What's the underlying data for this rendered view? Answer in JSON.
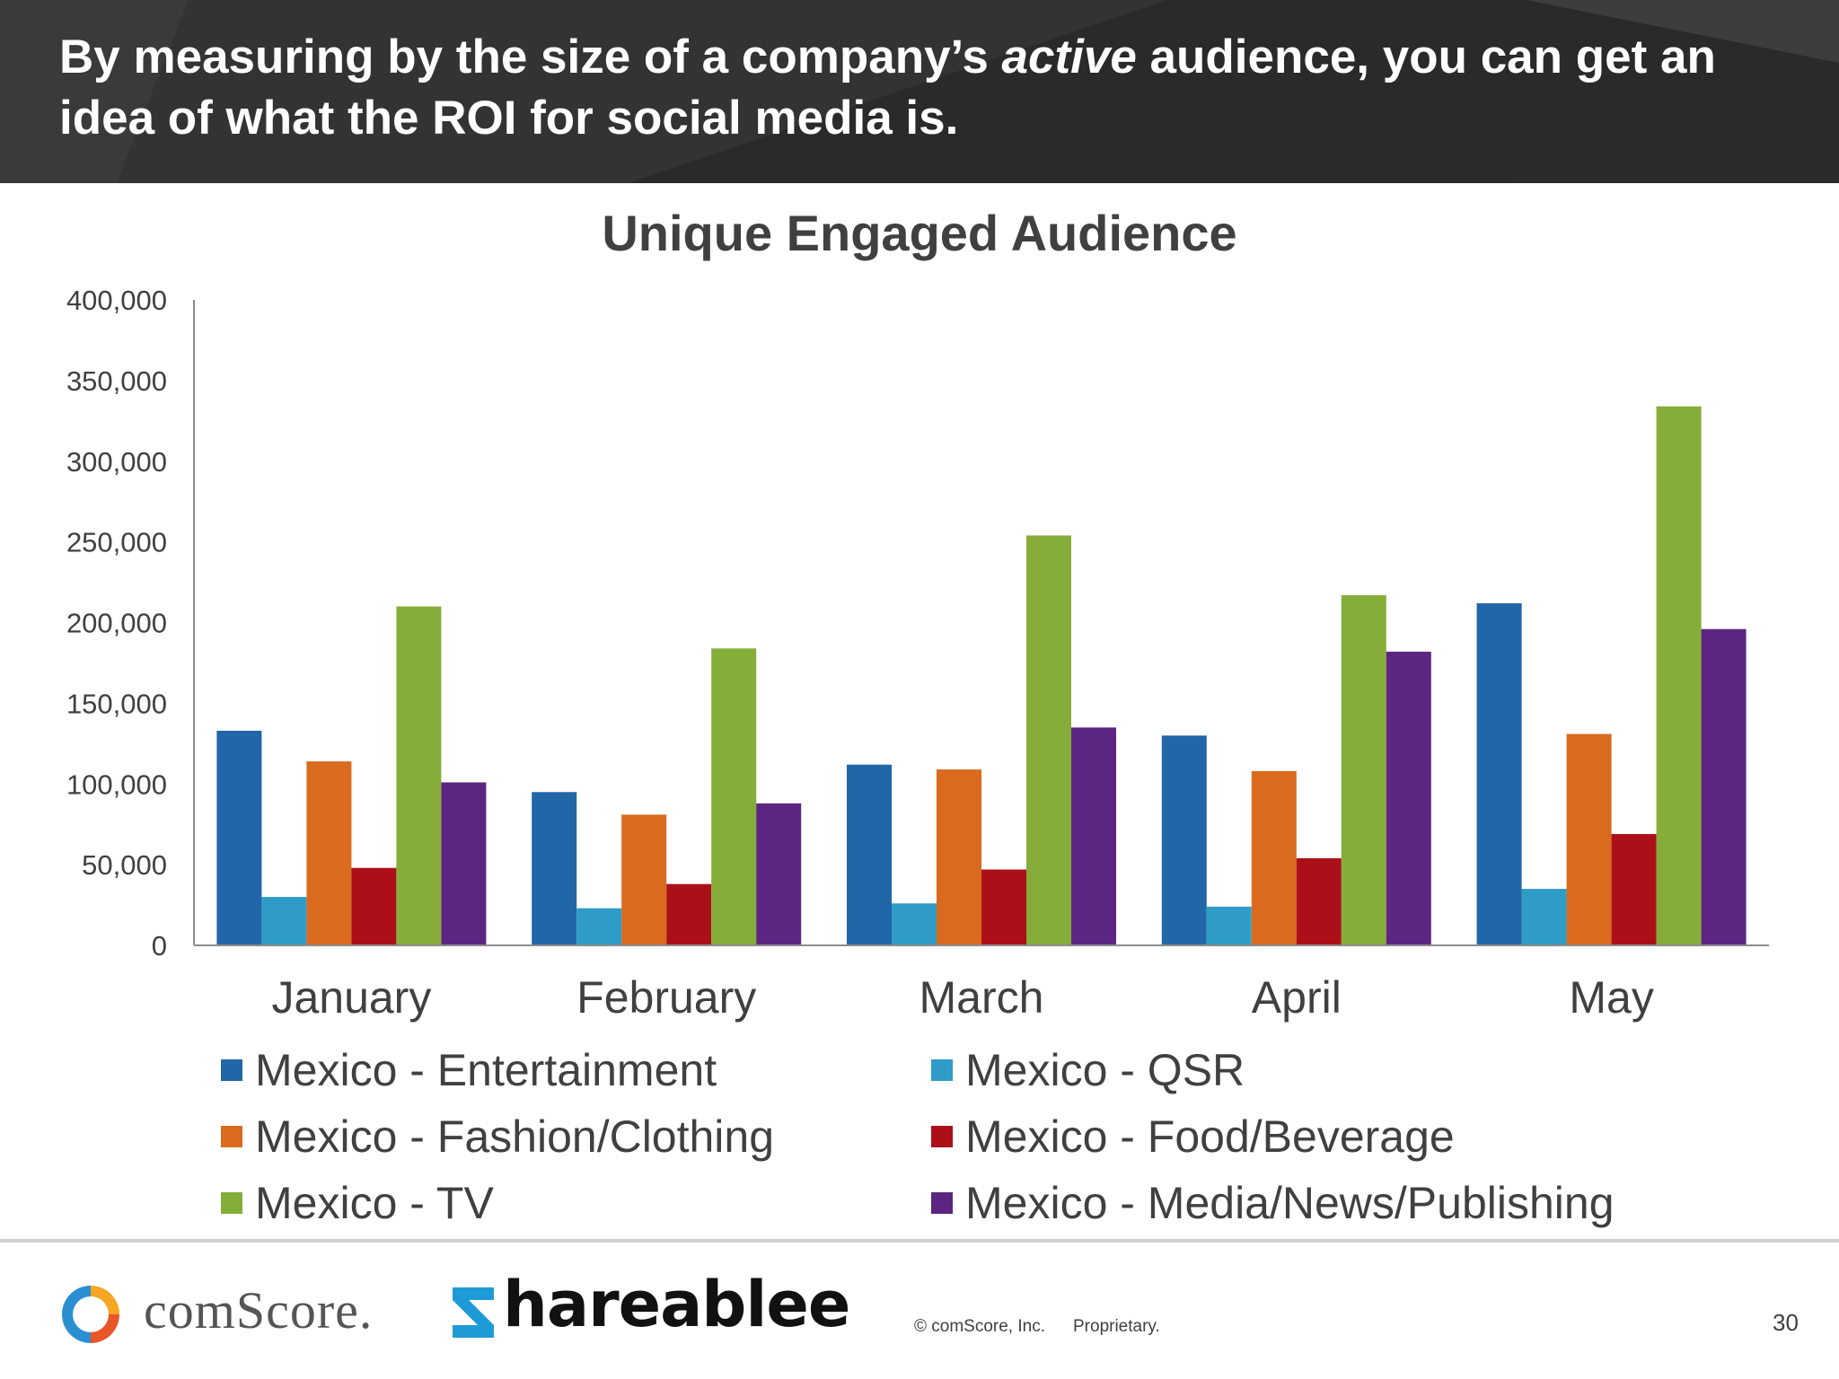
{
  "slide": {
    "headline_before": "By measuring by the size of a company’s ",
    "headline_emphasis": "active",
    "headline_after": " audience, you can get an idea of what the ROI for social media is.",
    "page_number": "30"
  },
  "footer": {
    "comscore_logo_text": "comScore.",
    "shareablee_logo_text": "hareablee",
    "copyright": "© comScore, Inc.",
    "proprietary": "Proprietary."
  },
  "colors": {
    "banner": "#2e2e2e",
    "axis": "#8c8c8c",
    "text": "#404040"
  },
  "chart_data": {
    "type": "bar",
    "title": "Unique Engaged Audience",
    "xlabel": "",
    "ylabel": "",
    "categories": [
      "January",
      "February",
      "March",
      "April",
      "May"
    ],
    "ylim": [
      0,
      400000
    ],
    "yticks": [
      0,
      50000,
      100000,
      150000,
      200000,
      250000,
      300000,
      350000,
      400000
    ],
    "ytick_labels": [
      "0",
      "50,000",
      "100,000",
      "150,000",
      "200,000",
      "250,000",
      "300,000",
      "350,000",
      "400,000"
    ],
    "grid": false,
    "legend_position": "bottom",
    "series": [
      {
        "name": "Mexico - Entertainment",
        "color": "#2166a7",
        "values": [
          133000,
          95000,
          112000,
          130000,
          212000
        ]
      },
      {
        "name": "Mexico - QSR",
        "color": "#2e9cc6",
        "values": [
          30000,
          23000,
          26000,
          24000,
          35000
        ]
      },
      {
        "name": "Mexico - Fashion/Clothing",
        "color": "#d96a1e",
        "values": [
          114000,
          81000,
          109000,
          108000,
          131000
        ]
      },
      {
        "name": "Mexico - Food/Beverage",
        "color": "#ab1019",
        "values": [
          48000,
          38000,
          47000,
          54000,
          69000
        ]
      },
      {
        "name": "Mexico - TV",
        "color": "#86ac3a",
        "values": [
          210000,
          184000,
          254000,
          217000,
          334000
        ]
      },
      {
        "name": "Mexico - Media/News/Publishing",
        "color": "#5c2582",
        "values": [
          101000,
          88000,
          135000,
          182000,
          196000
        ]
      }
    ]
  }
}
